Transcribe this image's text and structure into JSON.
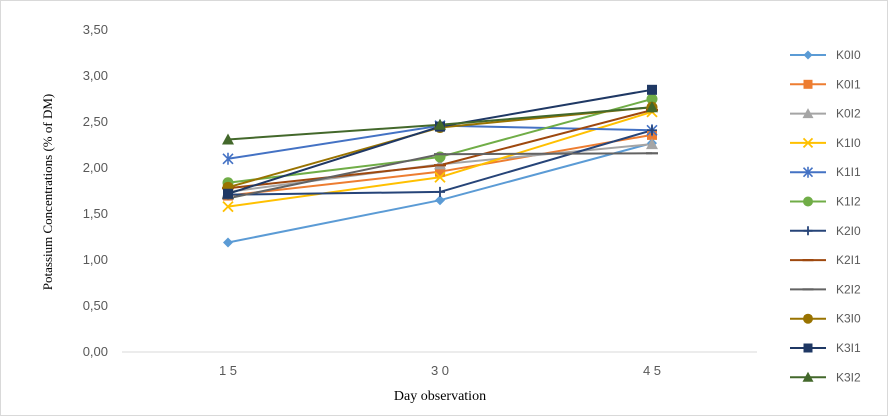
{
  "chart_data": {
    "type": "line",
    "title": "",
    "xlabel": "Day observation",
    "ylabel": "Potassium Concentrations (% of DM)",
    "categories": [
      "1 5",
      "3 0",
      "4 5"
    ],
    "ylim": [
      0,
      3.5
    ],
    "yticks": [
      "0,00",
      "0,50",
      "1,00",
      "1,50",
      "2,00",
      "2,50",
      "3,00",
      "3,50"
    ],
    "grid": false,
    "legend": "right",
    "series": [
      {
        "name": "K0I0",
        "values": [
          1.19,
          1.65,
          2.27
        ],
        "color": "#5b9bd5",
        "marker": "diamond"
      },
      {
        "name": "K0I1",
        "values": [
          1.7,
          1.96,
          2.36
        ],
        "color": "#ed7d31",
        "marker": "square"
      },
      {
        "name": "K0I2",
        "values": [
          1.74,
          2.04,
          2.26
        ],
        "color": "#a5a5a5",
        "marker": "triangle"
      },
      {
        "name": "K1I0",
        "values": [
          1.58,
          1.9,
          2.61
        ],
        "color": "#ffc000",
        "marker": "x"
      },
      {
        "name": "K1I1",
        "values": [
          2.1,
          2.46,
          2.41
        ],
        "color": "#4472c4",
        "marker": "star"
      },
      {
        "name": "K1I2",
        "values": [
          1.84,
          2.12,
          2.75
        ],
        "color": "#70ad47",
        "marker": "circle"
      },
      {
        "name": "K2I0",
        "values": [
          1.71,
          1.74,
          2.41
        ],
        "color": "#264478",
        "marker": "plus"
      },
      {
        "name": "K2I1",
        "values": [
          1.78,
          2.03,
          2.63
        ],
        "color": "#9e480e",
        "marker": "dash"
      },
      {
        "name": "K2I2",
        "values": [
          1.67,
          2.15,
          2.16
        ],
        "color": "#636363",
        "marker": "dash"
      },
      {
        "name": "K3I0",
        "values": [
          1.79,
          2.44,
          2.66
        ],
        "color": "#997300",
        "marker": "circle"
      },
      {
        "name": "K3I1",
        "values": [
          1.72,
          2.45,
          2.85
        ],
        "color": "#1f3864",
        "marker": "square"
      },
      {
        "name": "K3I2",
        "values": [
          2.31,
          2.47,
          2.66
        ],
        "color": "#43682b",
        "marker": "triangle"
      }
    ]
  }
}
